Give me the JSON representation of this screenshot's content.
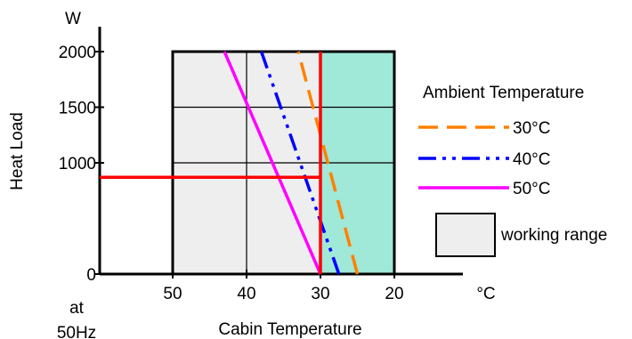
{
  "chart_data": {
    "type": "line",
    "xlabel": "Cabin Temperature",
    "xunit": "°C",
    "ylabel": "Heat Load",
    "yunit": "W",
    "x_note": [
      "at",
      "50Hz"
    ],
    "x_ticks": [
      50,
      40,
      30,
      20
    ],
    "y_ticks": [
      0,
      1000,
      1500,
      2000
    ],
    "x_range": [
      60,
      0
    ],
    "y_range": [
      0,
      2000
    ],
    "legend_title": "Ambient Temperature",
    "series": [
      {
        "name": "30°C",
        "color": "#FF8000",
        "dash": "dashed",
        "points": [
          [
            25,
            0
          ],
          [
            33,
            2000
          ]
        ]
      },
      {
        "name": "40°C",
        "color": "#0000FF",
        "dash": "dash-dot-dot",
        "points": [
          [
            27.5,
            0
          ],
          [
            38,
            2000
          ]
        ]
      },
      {
        "name": "50°C",
        "color": "#FF00FF",
        "dash": "solid",
        "points": [
          [
            30,
            0
          ],
          [
            43,
            2000
          ]
        ]
      }
    ],
    "working_range": {
      "label": "working range",
      "x": [
        50,
        20
      ],
      "y": [
        0,
        2000
      ],
      "fill": "#EEEEEE",
      "inner_grid_y": [
        1500,
        1000
      ],
      "inner_grid_x": [
        40
      ]
    },
    "shaded_region": {
      "x": [
        30,
        20
      ],
      "y": [
        0,
        2000
      ],
      "fill": "#A0E8D8"
    },
    "operating_point": {
      "x": 30,
      "y": 870,
      "color": "#FF0000"
    }
  }
}
